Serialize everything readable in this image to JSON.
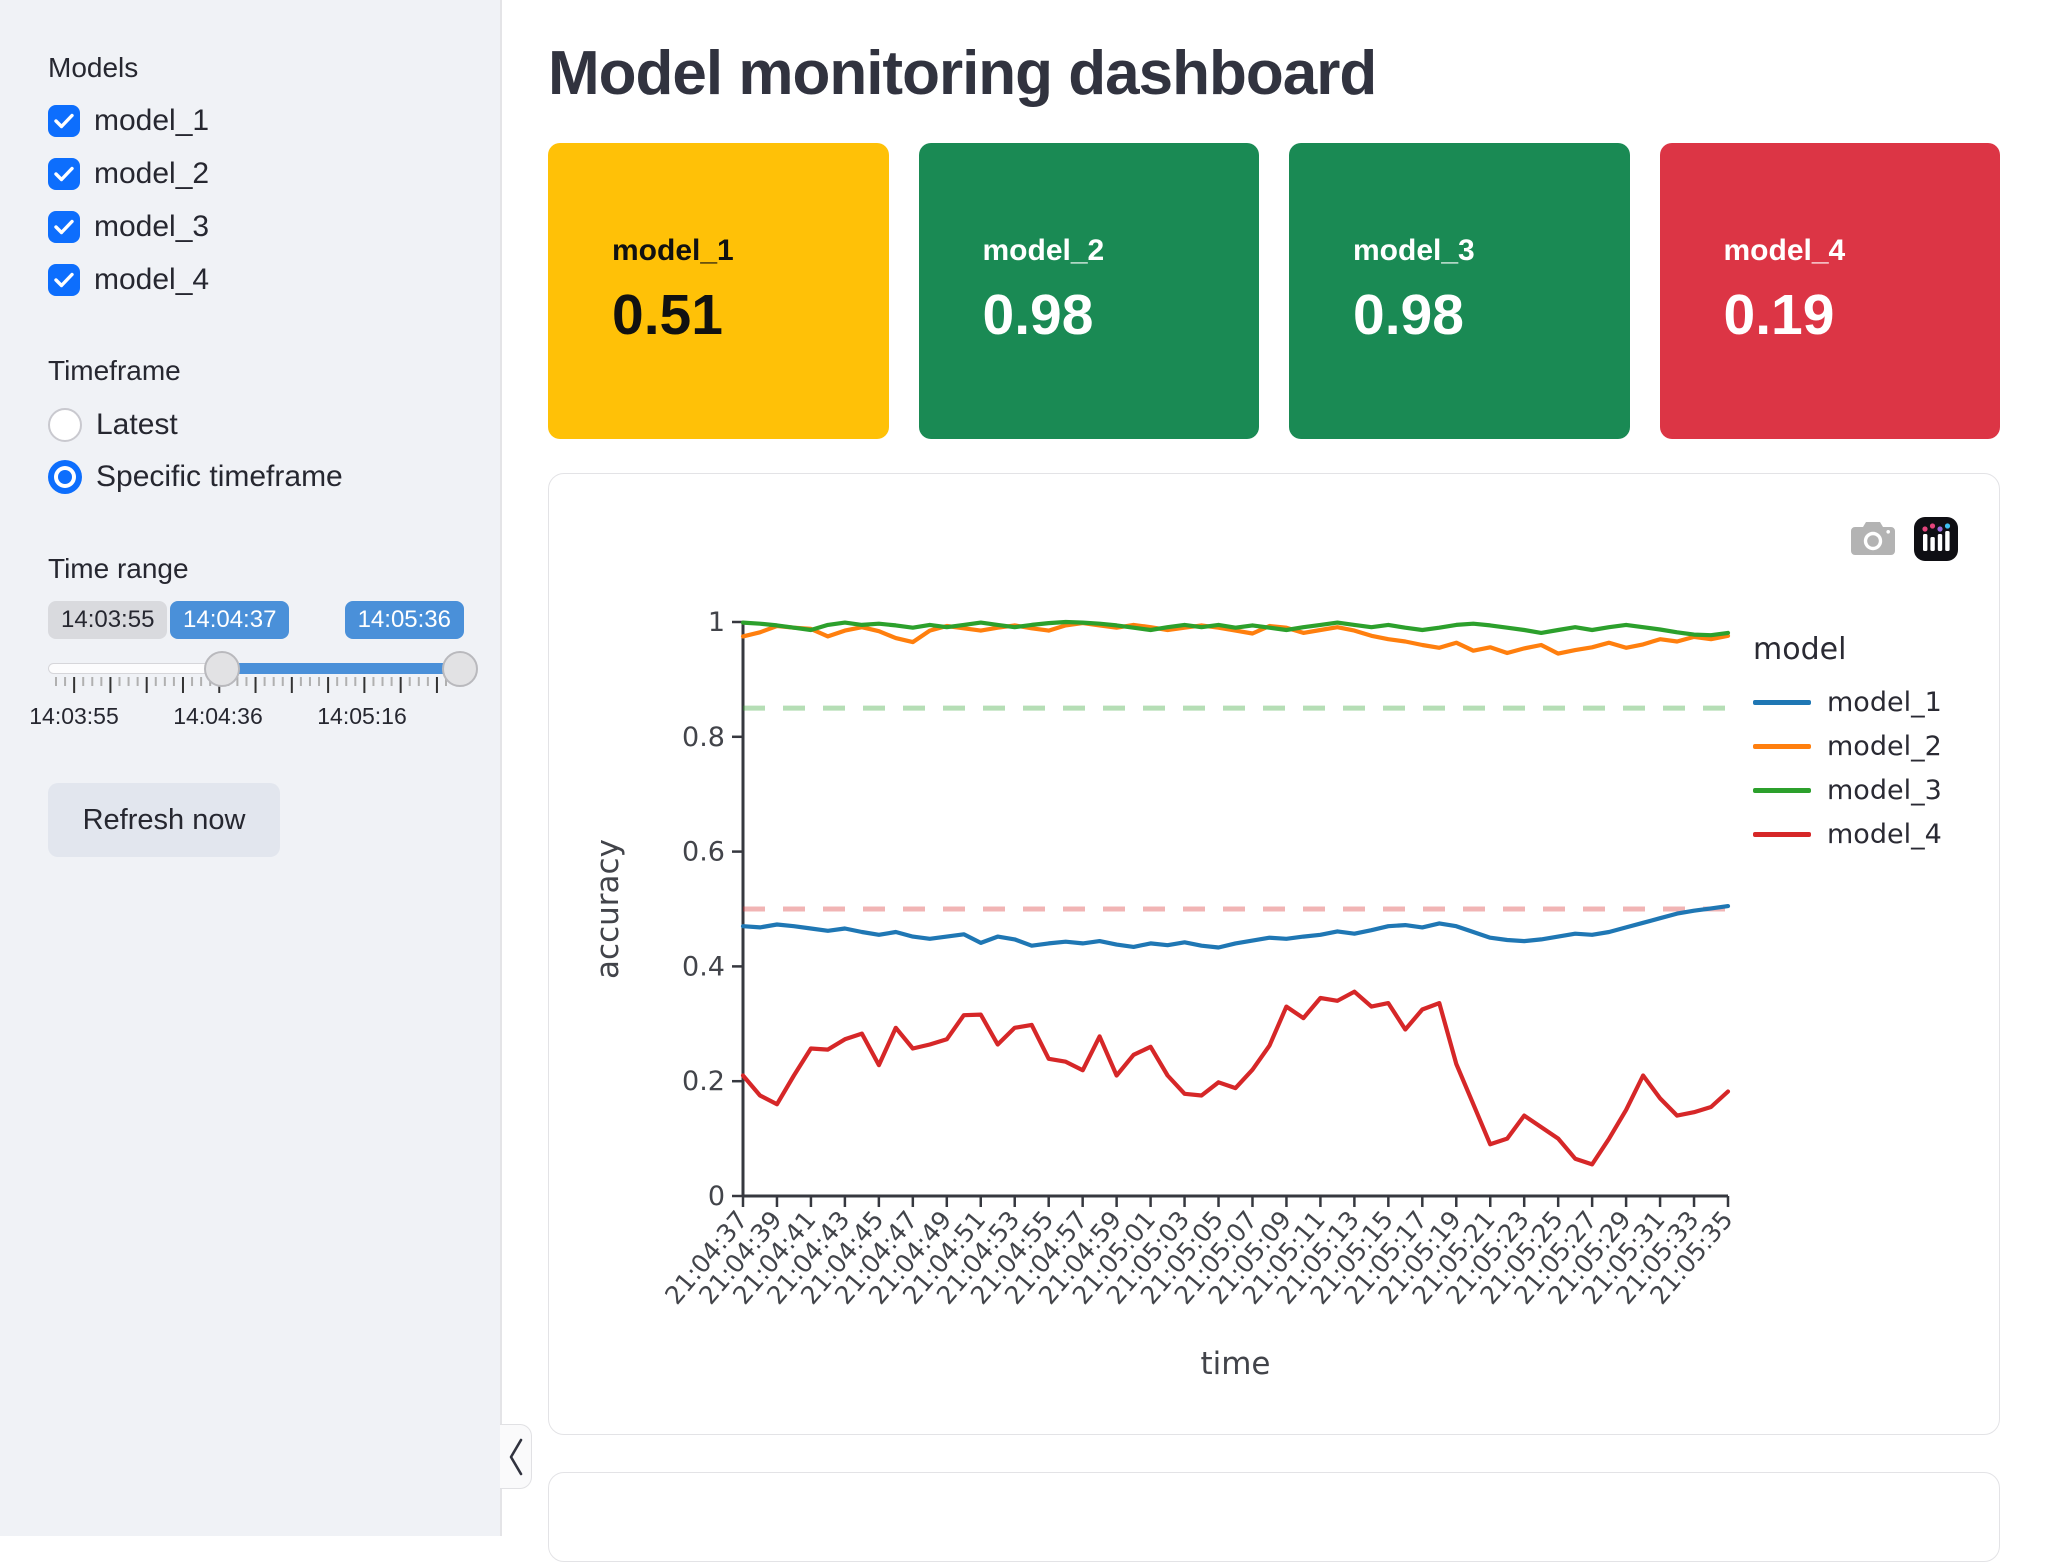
{
  "sidebar": {
    "models_label": "Models",
    "models": [
      {
        "label": "model_1",
        "checked": true
      },
      {
        "label": "model_2",
        "checked": true
      },
      {
        "label": "model_3",
        "checked": true
      },
      {
        "label": "model_4",
        "checked": true
      }
    ],
    "timeframe_label": "Timeframe",
    "timeframe_options": [
      {
        "label": "Latest",
        "selected": false
      },
      {
        "label": "Specific timeframe",
        "selected": true
      }
    ],
    "time_range_label": "Time range",
    "slider": {
      "min_badge": "14:03:55",
      "start_value": "14:04:37",
      "end_value": "14:05:36",
      "axis_labels": [
        "14:03:55",
        "14:04:36",
        "14:05:16"
      ],
      "accent_color": "#4a90d9"
    },
    "refresh_button": "Refresh now",
    "collapse_icon": "chevron-left-icon"
  },
  "main": {
    "title": "Model monitoring dashboard",
    "cards": [
      {
        "label": "model_1",
        "value": "0.51",
        "bg": "#ffc107",
        "fg": "#111111"
      },
      {
        "label": "model_2",
        "value": "0.98",
        "bg": "#1a8a54",
        "fg": "#ffffff"
      },
      {
        "label": "model_3",
        "value": "0.98",
        "bg": "#1a8a54",
        "fg": "#ffffff"
      },
      {
        "label": "model_4",
        "value": "0.19",
        "bg": "#dc3545",
        "fg": "#ffffff"
      }
    ],
    "modebar_icons": [
      "camera-icon",
      "plotly-logo-icon"
    ]
  },
  "chart_data": {
    "type": "line",
    "title": "",
    "xlabel": "time",
    "ylabel": "accuracy",
    "ylim": [
      0,
      1
    ],
    "yticks": [
      0,
      0.2,
      0.4,
      0.6,
      0.8,
      1
    ],
    "legend_title": "model",
    "legend_position": "right",
    "grid": false,
    "x_labels": [
      "21:04:37",
      "21:04:39",
      "21:04:41",
      "21:04:43",
      "21:04:45",
      "21:04:47",
      "21:04:49",
      "21:04:51",
      "21:04:53",
      "21:04:55",
      "21:04:57",
      "21:04:59",
      "21:05:01",
      "21:05:03",
      "21:05:05",
      "21:05:07",
      "21:05:09",
      "21:05:11",
      "21:05:13",
      "21:05:15",
      "21:05:17",
      "21:05:19",
      "21:05:21",
      "21:05:23",
      "21:05:25",
      "21:05:27",
      "21:05:29",
      "21:05:31",
      "21:05:33",
      "21:05:35"
    ],
    "points_per_label_interval": 2,
    "series": [
      {
        "name": "model_1",
        "color": "#1f77b4",
        "values": [
          0.47,
          0.468,
          0.473,
          0.47,
          0.466,
          0.462,
          0.466,
          0.46,
          0.455,
          0.46,
          0.452,
          0.448,
          0.452,
          0.456,
          0.441,
          0.452,
          0.447,
          0.436,
          0.44,
          0.443,
          0.44,
          0.444,
          0.438,
          0.434,
          0.44,
          0.437,
          0.442,
          0.436,
          0.433,
          0.44,
          0.445,
          0.45,
          0.448,
          0.452,
          0.455,
          0.461,
          0.457,
          0.463,
          0.47,
          0.472,
          0.468,
          0.475,
          0.47,
          0.46,
          0.45,
          0.446,
          0.444,
          0.447,
          0.452,
          0.457,
          0.455,
          0.46,
          0.468,
          0.476,
          0.484,
          0.492,
          0.497,
          0.501,
          0.505
        ]
      },
      {
        "name": "model_2",
        "color": "#ff7f0e",
        "values": [
          0.975,
          0.982,
          0.993,
          0.99,
          0.988,
          0.975,
          0.985,
          0.991,
          0.984,
          0.972,
          0.965,
          0.985,
          0.993,
          0.989,
          0.985,
          0.99,
          0.994,
          0.989,
          0.985,
          0.994,
          0.998,
          0.994,
          0.99,
          0.995,
          0.991,
          0.986,
          0.99,
          0.994,
          0.99,
          0.985,
          0.98,
          0.993,
          0.99,
          0.981,
          0.986,
          0.991,
          0.985,
          0.976,
          0.97,
          0.966,
          0.96,
          0.955,
          0.964,
          0.95,
          0.956,
          0.946,
          0.954,
          0.96,
          0.945,
          0.951,
          0.956,
          0.964,
          0.955,
          0.961,
          0.97,
          0.966,
          0.974,
          0.97,
          0.976
        ]
      },
      {
        "name": "model_3",
        "color": "#2ca02c",
        "values": [
          0.999,
          0.997,
          0.994,
          0.99,
          0.986,
          0.995,
          0.999,
          0.995,
          0.997,
          0.994,
          0.99,
          0.995,
          0.991,
          0.995,
          0.999,
          0.995,
          0.991,
          0.995,
          0.998,
          1.0,
          0.999,
          0.997,
          0.994,
          0.99,
          0.986,
          0.991,
          0.995,
          0.991,
          0.995,
          0.99,
          0.994,
          0.99,
          0.986,
          0.991,
          0.995,
          0.999,
          0.995,
          0.991,
          0.995,
          0.99,
          0.986,
          0.99,
          0.995,
          0.997,
          0.994,
          0.99,
          0.986,
          0.981,
          0.986,
          0.991,
          0.986,
          0.991,
          0.995,
          0.991,
          0.987,
          0.982,
          0.978,
          0.977,
          0.981
        ]
      },
      {
        "name": "model_4",
        "color": "#d62728",
        "values": [
          0.21,
          0.175,
          0.16,
          0.21,
          0.257,
          0.255,
          0.273,
          0.283,
          0.228,
          0.293,
          0.257,
          0.264,
          0.273,
          0.315,
          0.316,
          0.264,
          0.293,
          0.298,
          0.239,
          0.234,
          0.219,
          0.278,
          0.21,
          0.246,
          0.26,
          0.21,
          0.178,
          0.175,
          0.198,
          0.188,
          0.22,
          0.262,
          0.33,
          0.31,
          0.345,
          0.34,
          0.356,
          0.33,
          0.336,
          0.29,
          0.325,
          0.336,
          0.23,
          0.16,
          0.09,
          0.1,
          0.14,
          0.12,
          0.1,
          0.065,
          0.055,
          0.1,
          0.15,
          0.21,
          0.17,
          0.14,
          0.146,
          0.155,
          0.182
        ]
      }
    ],
    "thresholds": [
      {
        "value": 0.85,
        "color": "rgba(44,160,44,0.35)"
      },
      {
        "value": 0.5,
        "color": "rgba(214,39,40,0.35)"
      }
    ],
    "axis_color": "#36383f",
    "tick_text_color": "#42444a"
  }
}
